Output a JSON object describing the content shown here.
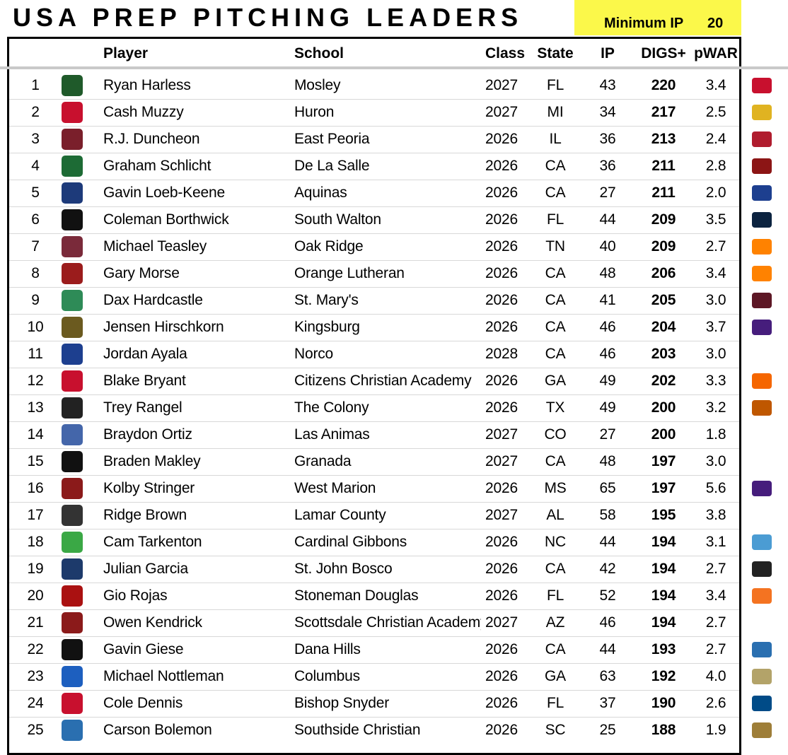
{
  "title": "USA PREP PITCHING LEADERS",
  "minimum_ip": {
    "label": "Minimum IP",
    "value": "20"
  },
  "table": {
    "headers": [
      "Player",
      "School",
      "Class",
      "State",
      "IP",
      "DIGS+",
      "pWAR"
    ],
    "rows": [
      [
        "1",
        "Ryan Harless",
        "Mosley",
        "2027",
        "FL",
        "43",
        "220",
        "3.4"
      ],
      [
        "2",
        "Cash Muzzy",
        "Huron",
        "2027",
        "MI",
        "34",
        "217",
        "2.5"
      ],
      [
        "3",
        "R.J. Duncheon",
        "East Peoria",
        "2026",
        "IL",
        "36",
        "213",
        "2.4"
      ],
      [
        "4",
        "Graham Schlicht",
        "De La Salle",
        "2026",
        "CA",
        "36",
        "211",
        "2.8"
      ],
      [
        "5",
        "Gavin Loeb-Keene",
        "Aquinas",
        "2026",
        "CA",
        "27",
        "211",
        "2.0"
      ],
      [
        "6",
        "Coleman Borthwick",
        "South Walton",
        "2026",
        "FL",
        "44",
        "209",
        "3.5"
      ],
      [
        "7",
        "Michael Teasley",
        "Oak Ridge",
        "2026",
        "TN",
        "40",
        "209",
        "2.7"
      ],
      [
        "8",
        "Gary Morse",
        "Orange Lutheran",
        "2026",
        "CA",
        "48",
        "206",
        "3.4"
      ],
      [
        "9",
        "Dax Hardcastle",
        "St. Mary's",
        "2026",
        "CA",
        "41",
        "205",
        "3.0"
      ],
      [
        "10",
        "Jensen Hirschkorn",
        "Kingsburg",
        "2026",
        "CA",
        "46",
        "204",
        "3.7"
      ],
      [
        "11",
        "Jordan Ayala",
        "Norco",
        "2028",
        "CA",
        "46",
        "203",
        "3.0"
      ],
      [
        "12",
        "Blake Bryant",
        "Citizens Christian Academy",
        "2026",
        "GA",
        "49",
        "202",
        "3.3"
      ],
      [
        "13",
        "Trey Rangel",
        "The Colony",
        "2026",
        "TX",
        "49",
        "200",
        "3.2"
      ],
      [
        "14",
        "Braydon Ortiz",
        "Las Animas",
        "2027",
        "CO",
        "27",
        "200",
        "1.8"
      ],
      [
        "15",
        "Braden Makley",
        "Granada",
        "2027",
        "CA",
        "48",
        "197",
        "3.0"
      ],
      [
        "16",
        "Kolby Stringer",
        "West Marion",
        "2026",
        "MS",
        "65",
        "197",
        "5.6"
      ],
      [
        "17",
        "Ridge Brown",
        "Lamar County",
        "2027",
        "AL",
        "58",
        "195",
        "3.8"
      ],
      [
        "18",
        "Cam Tarkenton",
        "Cardinal Gibbons",
        "2026",
        "NC",
        "44",
        "194",
        "3.1"
      ],
      [
        "19",
        "Julian Garcia",
        "St. John Bosco",
        "2026",
        "CA",
        "42",
        "194",
        "2.7"
      ],
      [
        "20",
        "Gio Rojas",
        "Stoneman Douglas",
        "2026",
        "FL",
        "52",
        "194",
        "3.4"
      ],
      [
        "21",
        "Owen Kendrick",
        "Scottsdale Christian Academy",
        "2027",
        "AZ",
        "46",
        "194",
        "2.7"
      ],
      [
        "22",
        "Gavin Giese",
        "Dana Hills",
        "2026",
        "CA",
        "44",
        "193",
        "2.7"
      ],
      [
        "23",
        "Michael Nottleman",
        "Columbus",
        "2026",
        "GA",
        "63",
        "192",
        "4.0"
      ],
      [
        "24",
        "Cole Dennis",
        "Bishop Snyder",
        "2026",
        "FL",
        "37",
        "190",
        "2.6"
      ],
      [
        "25",
        "Carson Bolemon",
        "Southside Christian",
        "2026",
        "SC",
        "25",
        "188",
        "1.9"
      ]
    ]
  }
}
